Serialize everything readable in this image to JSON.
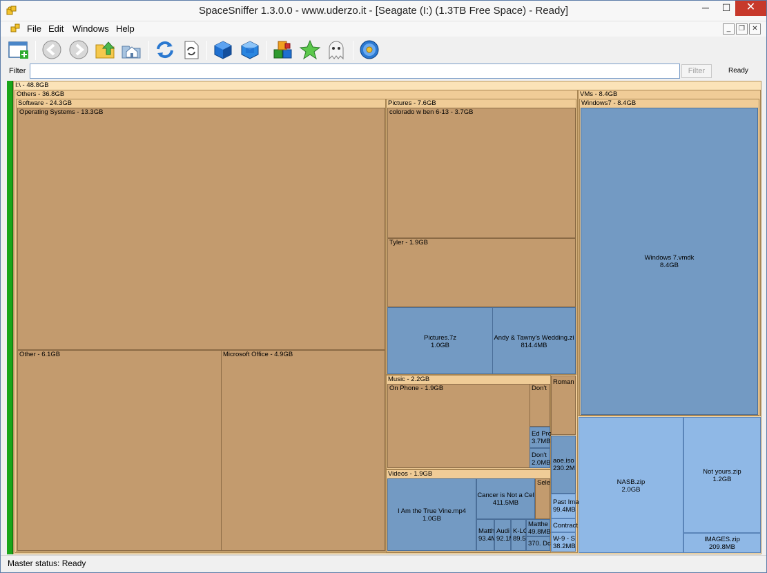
{
  "window": {
    "title": "SpaceSniffer 1.3.0.0 - www.uderzo.it - [Seagate (I:) (1.3TB Free Space) - Ready]",
    "close_glyph": "✕",
    "minimize_glyph": "─",
    "maximize_glyph": "☐"
  },
  "menu": {
    "items": [
      "File",
      "Edit",
      "Windows",
      "Help"
    ],
    "mdi_min": "_",
    "mdi_restore": "❐",
    "mdi_close": "✕"
  },
  "toolbar": {
    "buttons": [
      {
        "icon": "new-window-icon"
      },
      {
        "icon": "back-arrow-icon"
      },
      {
        "icon": "forward-arrow-icon"
      },
      {
        "icon": "folder-up-icon"
      },
      {
        "icon": "home-folder-icon"
      },
      {
        "icon": "refresh-icon"
      },
      {
        "icon": "document-refresh-icon"
      },
      {
        "icon": "blue-cube-zoom-in-icon"
      },
      {
        "icon": "blue-cube-zoom-out-icon"
      },
      {
        "icon": "colored-cubes-icon"
      },
      {
        "icon": "green-star-icon"
      },
      {
        "icon": "ghost-icon"
      },
      {
        "icon": "blue-flower-icon"
      }
    ]
  },
  "filter": {
    "label": "Filter",
    "value": "",
    "button_label": "Filter",
    "status": "Ready"
  },
  "treemap": {
    "root": "I:\\ - 48.8GB",
    "others": "Others - 36.8GB",
    "software": "Software - 24.3GB",
    "operating_systems": "Operating Systems - 13.3GB",
    "other": "Other - 6.1GB",
    "microsoft_office": "Microsoft Office - 4.9GB",
    "pictures": "Pictures - 7.6GB",
    "colorado": "colorado w ben 6-13 - 3.7GB",
    "tyler": "Tyler - 1.9GB",
    "pictures_7z_name": "Pictures.7z",
    "pictures_7z_size": "1.0GB",
    "andy_name": "Andy & Tawny's Wedding.zi",
    "andy_size": "814.4MB",
    "music": "Music - 2.2GB",
    "on_phone": "On Phone - 1.9GB",
    "dont1": "Don't",
    "ed_pro_name": "Ed Pro",
    "ed_pro_size": "3.7MB",
    "dont2_name": "Don't",
    "dont2_size": "2.0MB",
    "roman": "Roman",
    "aoe_name": "aoe.iso",
    "aoe_size": "230.2M",
    "past_ima_name": "Past Ima",
    "past_ima_size": "99.4MB",
    "contract": "Contract",
    "w9_name": "W-9 - S",
    "w9_size": "38.2MB",
    "videos": "Videos - 1.9GB",
    "vine_name": "I Am the True Vine.mp4",
    "vine_size": "1.0GB",
    "cancer_name": "Cancer is Not a Cel",
    "cancer_size": "411.5MB",
    "sele": "Sele",
    "matth1_name": "Matth",
    "matth1_size": "93.4M",
    "audi_name": "Audi",
    "audi_size": "92.1M",
    "klo_name": "K-LO",
    "klo_size": "89.5I",
    "matth2_name": "Matthe",
    "matth2_size": "49.8MB",
    "dc_name": "370. Dc",
    "vms": "VMs - 8.4GB",
    "windows7": "Windows7 - 8.4GB",
    "vmdk_name": "Windows 7.vmdk",
    "vmdk_size": "8.4GB",
    "nasb_name": "NASB.zip",
    "nasb_size": "2.0GB",
    "notyours_name": "Not yours.zip",
    "notyours_size": "1.2GB",
    "images_name": "IMAGES.zip",
    "images_size": "209.8MB"
  },
  "status": {
    "text": "Master status: Ready"
  },
  "colors": {
    "folder": "#f0cc97",
    "leaf_folder": "#c39b6e",
    "file": "#739ac3",
    "file_light": "#8fb8e6",
    "progress": "#1aa51a"
  }
}
